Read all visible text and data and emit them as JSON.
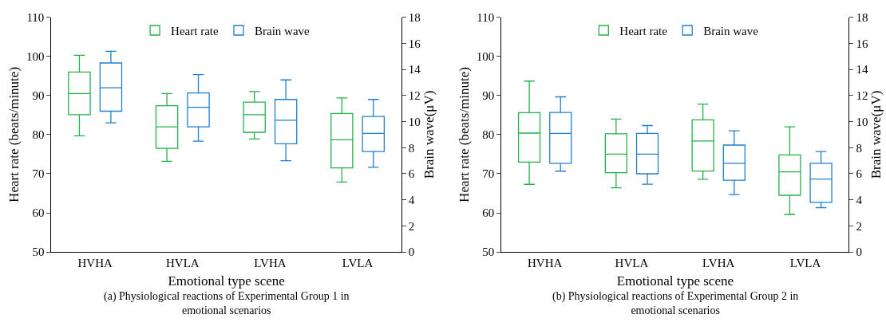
{
  "chart_data": [
    {
      "type": "box",
      "categories": [
        "HVHA",
        "HVLA",
        "LVHA",
        "LVLA"
      ],
      "xlabel": "Emotional type scene",
      "ylabel": "Heart rate (beats/minute)",
      "y2label": "Brain wave(μV)",
      "ylim": [
        50,
        110
      ],
      "yticks": [
        50,
        60,
        70,
        80,
        90,
        100,
        110
      ],
      "y2lim": [
        0,
        18
      ],
      "y2ticks": [
        0,
        2,
        4,
        6,
        8,
        10,
        12,
        14,
        16,
        18
      ],
      "legend": "top",
      "annotations": [
        "(a) Physiological reactions of Experimental Group 1 in emotional scenarios"
      ],
      "series": [
        {
          "name": "Heart rate",
          "color": "#22b14c",
          "boxes": [
            {
              "low": 79.7,
              "q1": 85.1,
              "median": 90.5,
              "q3": 96,
              "high": 100.3
            },
            {
              "low": 73.2,
              "q1": 76.5,
              "median": 82,
              "q3": 87.4,
              "high": 90.5
            },
            {
              "low": 78.9,
              "q1": 80.6,
              "median": 85.1,
              "q3": 88.3,
              "high": 91
            },
            {
              "low": 67.9,
              "q1": 71.5,
              "median": 78.7,
              "q3": 85.4,
              "high": 89.4
            }
          ]
        },
        {
          "name": "Brain wave",
          "color": "#1f7fd0",
          "axis": "y2",
          "boxes": [
            {
              "low": 9.9,
              "q1": 10.8,
              "median": 12.6,
              "q3": 14.5,
              "high": 15.4
            },
            {
              "low": 8.5,
              "q1": 9.6,
              "median": 11.1,
              "q3": 12.2,
              "high": 13.6
            },
            {
              "low": 7.0,
              "q1": 8.3,
              "median": 10.1,
              "q3": 11.7,
              "high": 13.2
            },
            {
              "low": 6.5,
              "q1": 7.7,
              "median": 9.1,
              "q3": 10.4,
              "high": 11.7
            }
          ]
        }
      ]
    },
    {
      "type": "box",
      "categories": [
        "HVHA",
        "HVLA",
        "LVHA",
        "LVLA"
      ],
      "xlabel": "Emotional type scene",
      "ylabel": "Heart rate (beats/minute)",
      "y2label": "Brain wave(μV)",
      "ylim": [
        50,
        110
      ],
      "yticks": [
        50,
        60,
        70,
        80,
        90,
        100,
        110
      ],
      "y2lim": [
        0,
        18
      ],
      "y2ticks": [
        0,
        2,
        4,
        6,
        8,
        10,
        12,
        14,
        16,
        18
      ],
      "legend": "top",
      "annotations": [
        "(b) Physiological reactions of Experimental Group 2 in emotional scenarios"
      ],
      "series": [
        {
          "name": "Heart rate",
          "color": "#22b14c",
          "boxes": [
            {
              "low": 67.3,
              "q1": 73,
              "median": 80.4,
              "q3": 85.6,
              "high": 93.7
            },
            {
              "low": 66.4,
              "q1": 70.3,
              "median": 75,
              "q3": 80.2,
              "high": 84
            },
            {
              "low": 68.6,
              "q1": 70.7,
              "median": 78.4,
              "q3": 83.8,
              "high": 87.8
            },
            {
              "low": 59.6,
              "q1": 64.5,
              "median": 70.5,
              "q3": 74.8,
              "high": 82
            }
          ]
        },
        {
          "name": "Brain wave",
          "color": "#1f7fd0",
          "axis": "y2",
          "boxes": [
            {
              "low": 6.2,
              "q1": 6.8,
              "median": 9.1,
              "q3": 10.7,
              "high": 11.9
            },
            {
              "low": 5.2,
              "q1": 6.0,
              "median": 7.5,
              "q3": 9.1,
              "high": 9.7
            },
            {
              "low": 4.4,
              "q1": 5.5,
              "median": 6.8,
              "q3": 8.2,
              "high": 9.3
            },
            {
              "low": 3.4,
              "q1": 3.8,
              "median": 5.6,
              "q3": 6.8,
              "high": 7.7
            }
          ]
        }
      ]
    }
  ]
}
